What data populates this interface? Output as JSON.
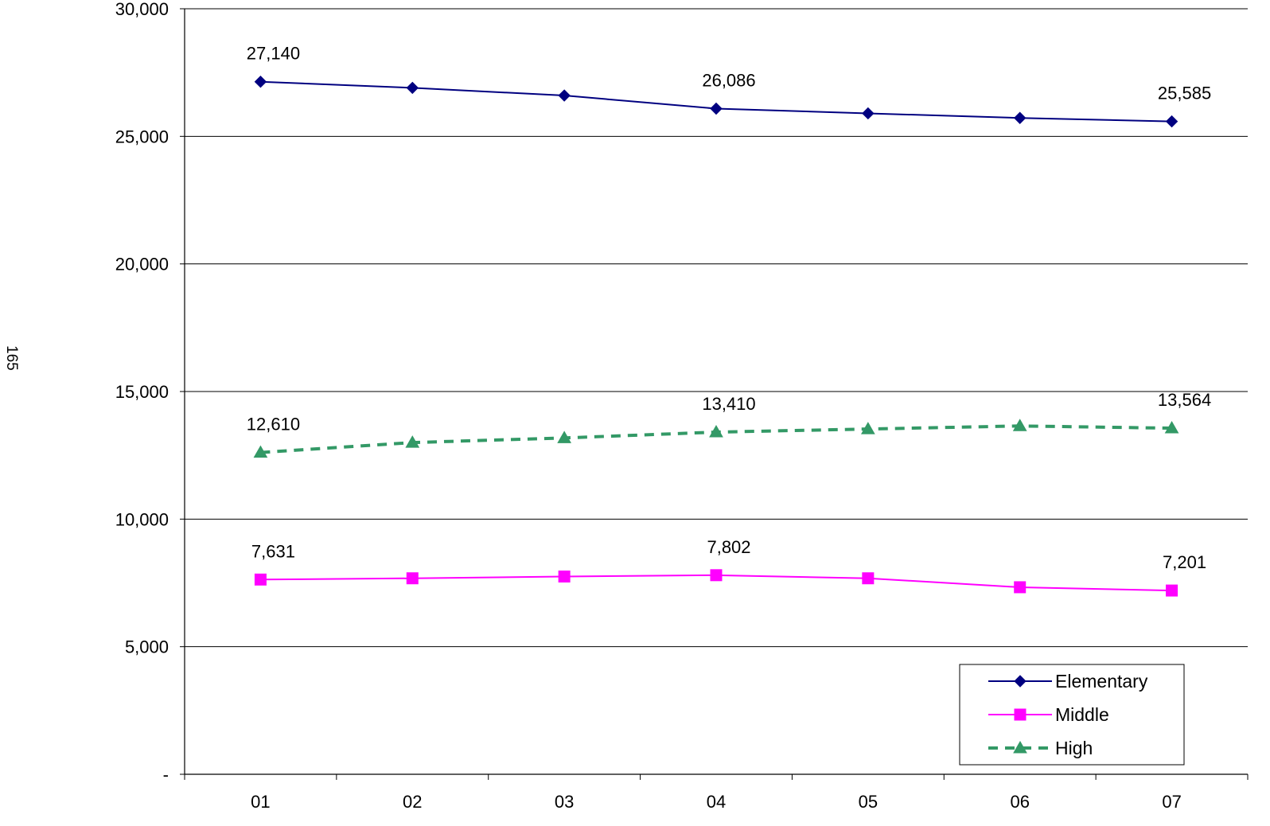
{
  "page_number": "165",
  "chart_data": {
    "type": "line",
    "categories": [
      "01",
      "02",
      "03",
      "04",
      "05",
      "06",
      "07"
    ],
    "ylim": [
      0,
      30000
    ],
    "yticks": [
      0,
      5000,
      10000,
      15000,
      20000,
      25000,
      30000
    ],
    "ytick_labels": [
      "-",
      "5,000",
      "10,000",
      "15,000",
      "20,000",
      "25,000",
      "30,000"
    ],
    "grid": "horizontal",
    "legend_position": "bottom-right",
    "series": [
      {
        "name": "Elementary",
        "color": "#000080",
        "marker": "diamond",
        "style": "solid",
        "values": [
          27140,
          26900,
          26600,
          26086,
          25900,
          25720,
          25585
        ],
        "labels": {
          "0": "27,140",
          "3": "26,086",
          "6": "25,585"
        }
      },
      {
        "name": "Middle",
        "color": "#ff00ff",
        "marker": "square",
        "style": "solid",
        "values": [
          7631,
          7680,
          7750,
          7802,
          7680,
          7330,
          7201
        ],
        "labels": {
          "0": "7,631",
          "3": "7,802",
          "6": "7,201"
        }
      },
      {
        "name": "High",
        "color": "#339966",
        "marker": "triangle",
        "style": "dashed",
        "values": [
          12610,
          13000,
          13180,
          13410,
          13530,
          13650,
          13564
        ],
        "labels": {
          "0": "12,610",
          "3": "13,410",
          "6": "13,564"
        }
      }
    ]
  }
}
